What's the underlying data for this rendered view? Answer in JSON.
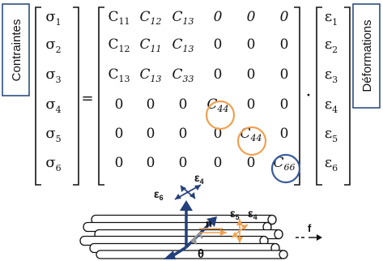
{
  "side_labels": {
    "left": "Contraintes",
    "right": "Déformations"
  },
  "operators": {
    "equals": "=",
    "dot": "·"
  },
  "stress_vector": [
    "σ",
    "σ",
    "σ",
    "σ",
    "σ",
    "σ"
  ],
  "stress_subscripts": [
    "1",
    "2",
    "3",
    "4",
    "5",
    "6"
  ],
  "strain_vector": [
    "ε",
    "ε",
    "ε",
    "ε",
    "ε",
    "ε"
  ],
  "strain_subscripts": [
    "1",
    "2",
    "3",
    "4",
    "5",
    "6"
  ],
  "stiffness_matrix": [
    [
      [
        "C",
        "11"
      ],
      [
        "C",
        "12"
      ],
      [
        "C",
        "13"
      ],
      [
        "0",
        ""
      ],
      [
        "0",
        ""
      ],
      [
        "0",
        ""
      ]
    ],
    [
      [
        "C",
        "12"
      ],
      [
        "C",
        "11"
      ],
      [
        "C",
        "13"
      ],
      [
        "0",
        ""
      ],
      [
        "0",
        ""
      ],
      [
        "0",
        ""
      ]
    ],
    [
      [
        "C",
        "13"
      ],
      [
        "C",
        "13"
      ],
      [
        "C",
        "33"
      ],
      [
        "0",
        ""
      ],
      [
        "0",
        ""
      ],
      [
        "0",
        ""
      ]
    ],
    [
      [
        "0",
        ""
      ],
      [
        "0",
        ""
      ],
      [
        "0",
        ""
      ],
      [
        "C",
        "44"
      ],
      [
        "0",
        ""
      ],
      [
        "0",
        ""
      ]
    ],
    [
      [
        "0",
        ""
      ],
      [
        "0",
        ""
      ],
      [
        "0",
        ""
      ],
      [
        "0",
        ""
      ],
      [
        "C",
        "44"
      ],
      [
        "0",
        ""
      ]
    ],
    [
      [
        "0",
        ""
      ],
      [
        "0",
        ""
      ],
      [
        "0",
        ""
      ],
      [
        "0",
        ""
      ],
      [
        "0",
        ""
      ],
      [
        "C",
        "66"
      ]
    ]
  ],
  "highlight_colors": {
    "shear_44": "#f0a050",
    "shear_66": "#3a5a9a"
  },
  "fiber_diagram": {
    "eps6": [
      "ε",
      "6"
    ],
    "eps4_top": [
      "ε",
      "4"
    ],
    "eps5": [
      "ε",
      "5"
    ],
    "eps4_right": [
      "ε",
      "4"
    ],
    "n_label": "n",
    "f_label": "f",
    "theta_label": "θ",
    "colors": {
      "navy": "#24407a",
      "orange": "#f0a050",
      "gray": "#999999"
    }
  }
}
